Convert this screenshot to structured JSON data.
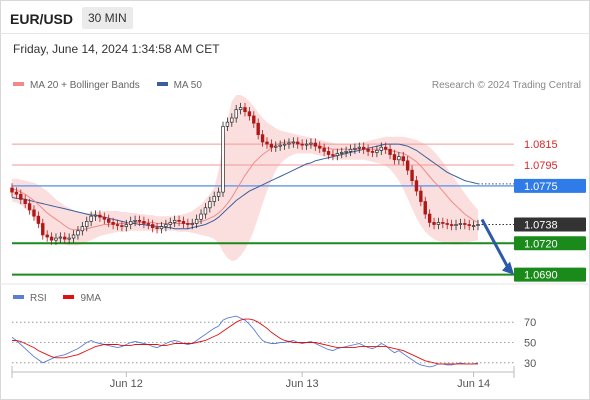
{
  "header": {
    "symbol": "EUR/USD",
    "timeframe": "30 MIN",
    "datetime": "Friday, June 14, 2024 1:34:58 AM CET"
  },
  "legend": {
    "ma20_label": "MA 20 + Bollinger Bands",
    "ma50_label": "MA 50",
    "ma20_color": "#f08a8a",
    "ma50_color": "#3b5f9e",
    "credit": "Research © 2024 Trading Central"
  },
  "rsi_legend": {
    "rsi_label": "RSI",
    "ma_label": "9MA",
    "rsi_color": "#5b7fd6",
    "ma_color": "#e01010"
  },
  "chart_data": {
    "type": "candlestick",
    "price_axis": {
      "range": [
        1.0682,
        1.0862
      ]
    },
    "levels": [
      {
        "value": "1.0815",
        "kind": "resistance",
        "color": "#e03030"
      },
      {
        "value": "1.0795",
        "kind": "resistance",
        "color": "#e03030"
      },
      {
        "value": "1.0775",
        "kind": "pivot",
        "color": "#2f7be8"
      },
      {
        "value": "1.0738",
        "kind": "last",
        "color": "#333333"
      },
      {
        "value": "1.0720",
        "kind": "support",
        "color": "#1a8a1a"
      },
      {
        "value": "1.0690",
        "kind": "support",
        "color": "#1a8a1a"
      }
    ],
    "x_ticks": [
      "Jun 12",
      "Jun 13",
      "Jun 14"
    ],
    "close": [
      1.0769,
      1.0767,
      1.0762,
      1.0758,
      1.0752,
      1.0746,
      1.0739,
      1.0728,
      1.0726,
      1.0723,
      1.0725,
      1.0726,
      1.0724,
      1.0725,
      1.0728,
      1.0732,
      1.0736,
      1.0741,
      1.0746,
      1.0747,
      1.0745,
      1.0743,
      1.074,
      1.0738,
      1.0737,
      1.0736,
      1.0738,
      1.0741,
      1.0742,
      1.0741,
      1.0739,
      1.0738,
      1.0735,
      1.0734,
      1.0736,
      1.0738,
      1.074,
      1.0742,
      1.0741,
      1.0739,
      1.0738,
      1.0739,
      1.0743,
      1.0748,
      1.0754,
      1.076,
      1.0765,
      1.0769,
      1.0832,
      1.0836,
      1.084,
      1.0848,
      1.085,
      1.0846,
      1.0842,
      1.0835,
      1.0824,
      1.0817,
      1.0815,
      1.0812,
      1.0813,
      1.0814,
      1.0815,
      1.0816,
      1.0817,
      1.0815,
      1.0814,
      1.0815,
      1.0816,
      1.0813,
      1.0811,
      1.0808,
      1.0805,
      1.0804,
      1.0806,
      1.0807,
      1.0808,
      1.081,
      1.0811,
      1.0812,
      1.081,
      1.0808,
      1.0807,
      1.0809,
      1.0812,
      1.081,
      1.0805,
      1.08,
      1.0803,
      1.0799,
      1.079,
      1.078,
      1.077,
      1.076,
      1.0748,
      1.074,
      1.0738,
      1.074,
      1.0739,
      1.0738,
      1.0737,
      1.0738,
      1.0739,
      1.0738,
      1.0737,
      1.0737,
      1.0738
    ],
    "ma20": [
      1.0772,
      1.0771,
      1.0769,
      1.0767,
      1.0764,
      1.0761,
      1.0757,
      1.0753,
      1.0749,
      1.0746,
      1.0743,
      1.074,
      1.0737,
      1.0734,
      1.0733,
      1.0733,
      1.0733,
      1.0734,
      1.0735,
      1.0736,
      1.0737,
      1.0738,
      1.0738,
      1.0739,
      1.0739,
      1.0739,
      1.0739,
      1.074,
      1.074,
      1.074,
      1.074,
      1.074,
      1.074,
      1.0739,
      1.0739,
      1.0739,
      1.0739,
      1.0739,
      1.0739,
      1.0739,
      1.0739,
      1.0739,
      1.074,
      1.0741,
      1.0742,
      1.0744,
      1.0746,
      1.0749,
      1.0753,
      1.0758,
      1.0764,
      1.0771,
      1.0778,
      1.0785,
      1.0791,
      1.0797,
      1.0801,
      1.0805,
      1.0808,
      1.0811,
      1.0814,
      1.0816,
      1.0817,
      1.0817,
      1.0817,
      1.0816,
      1.0815,
      1.0815,
      1.0814,
      1.0814,
      1.0813,
      1.0812,
      1.0811,
      1.081,
      1.081,
      1.081,
      1.081,
      1.081,
      1.081,
      1.081,
      1.081,
      1.081,
      1.081,
      1.081,
      1.081,
      1.081,
      1.0809,
      1.0808,
      1.0807,
      1.0806,
      1.0804,
      1.0801,
      1.0798,
      1.0794,
      1.0789,
      1.0784,
      1.0779,
      1.0775,
      1.077,
      1.0765,
      1.076,
      1.0756,
      1.0752,
      1.0748,
      1.0745,
      1.0742,
      1.074
    ],
    "bb_upper": [
      1.0782,
      1.0782,
      1.0781,
      1.078,
      1.0779,
      1.0778,
      1.0776,
      1.0773,
      1.077,
      1.0766,
      1.0762,
      1.0759,
      1.0756,
      1.0754,
      1.0752,
      1.075,
      1.0749,
      1.0749,
      1.0749,
      1.075,
      1.075,
      1.0751,
      1.0751,
      1.0751,
      1.0751,
      1.075,
      1.075,
      1.0749,
      1.0749,
      1.0748,
      1.0748,
      1.0747,
      1.0747,
      1.0746,
      1.0746,
      1.0746,
      1.0746,
      1.0746,
      1.0747,
      1.0748,
      1.0749,
      1.0751,
      1.0754,
      1.0757,
      1.0762,
      1.0767,
      1.0773,
      1.079,
      1.0815,
      1.0838,
      1.0856,
      1.0862,
      1.0862,
      1.086,
      1.0856,
      1.0851,
      1.0845,
      1.084,
      1.0836,
      1.0833,
      1.083,
      1.0828,
      1.0827,
      1.0826,
      1.0825,
      1.0824,
      1.0823,
      1.0822,
      1.0821,
      1.082,
      1.0819,
      1.0818,
      1.0817,
      1.0816,
      1.0815,
      1.0815,
      1.0815,
      1.0815,
      1.0816,
      1.0816,
      1.0817,
      1.0818,
      1.0819,
      1.082,
      1.0821,
      1.0822,
      1.0822,
      1.0822,
      1.0822,
      1.0822,
      1.0821,
      1.082,
      1.0819,
      1.0817,
      1.0815,
      1.0812,
      1.0808,
      1.0803,
      1.0798,
      1.0792,
      1.0786,
      1.078,
      1.0774,
      1.0768,
      1.0762,
      1.0757,
      1.0752
    ],
    "bb_lower": [
      1.076,
      1.0759,
      1.0757,
      1.0754,
      1.0749,
      1.0744,
      1.0738,
      1.0732,
      1.0727,
      1.0724,
      1.0722,
      1.072,
      1.0719,
      1.0718,
      1.0718,
      1.0718,
      1.0719,
      1.0721,
      1.0723,
      1.0725,
      1.0727,
      1.0728,
      1.0729,
      1.073,
      1.0731,
      1.0731,
      1.0731,
      1.0732,
      1.0732,
      1.0732,
      1.0732,
      1.0732,
      1.0732,
      1.0732,
      1.0732,
      1.0732,
      1.0732,
      1.0732,
      1.0731,
      1.0731,
      1.0731,
      1.073,
      1.0729,
      1.0728,
      1.0727,
      1.0726,
      1.0724,
      1.072,
      1.0712,
      1.0706,
      1.0703,
      1.0704,
      1.0708,
      1.0714,
      1.0722,
      1.0732,
      1.0745,
      1.0758,
      1.077,
      1.078,
      1.079,
      1.0796,
      1.08,
      1.0803,
      1.0805,
      1.0806,
      1.0806,
      1.0806,
      1.0806,
      1.0805,
      1.0804,
      1.0803,
      1.0802,
      1.0801,
      1.08,
      1.08,
      1.08,
      1.08,
      1.08,
      1.08,
      1.08,
      1.0799,
      1.0798,
      1.0797,
      1.0796,
      1.0794,
      1.0791,
      1.0786,
      1.078,
      1.0772,
      1.0763,
      1.0753,
      1.0744,
      1.0737,
      1.0731,
      1.0727,
      1.0724,
      1.0722,
      1.0721,
      1.072,
      1.0719,
      1.0719,
      1.0719,
      1.072,
      1.0721,
      1.0722,
      1.0723
    ],
    "ma50": [
      1.0764,
      1.0763,
      1.0763,
      1.0762,
      1.0761,
      1.076,
      1.0759,
      1.0758,
      1.0757,
      1.0756,
      1.0755,
      1.0754,
      1.0753,
      1.0752,
      1.0751,
      1.075,
      1.0749,
      1.0748,
      1.0747,
      1.0747,
      1.0746,
      1.0745,
      1.0744,
      1.0743,
      1.0742,
      1.0741,
      1.074,
      1.0739,
      1.0739,
      1.0738,
      1.0738,
      1.0737,
      1.0737,
      1.0736,
      1.0736,
      1.0735,
      1.0735,
      1.0734,
      1.0734,
      1.0734,
      1.0734,
      1.0735,
      1.0736,
      1.0737,
      1.0738,
      1.074,
      1.0742,
      1.0745,
      1.0749,
      1.0753,
      1.0757,
      1.0761,
      1.0764,
      1.0767,
      1.077,
      1.0772,
      1.0774,
      1.0776,
      1.0778,
      1.078,
      1.0782,
      1.0784,
      1.0786,
      1.0788,
      1.079,
      1.0792,
      1.0794,
      1.0796,
      1.0797,
      1.0799,
      1.08,
      1.0801,
      1.0802,
      1.0803,
      1.0804,
      1.0805,
      1.0806,
      1.0807,
      1.0808,
      1.0809,
      1.081,
      1.0811,
      1.0812,
      1.0813,
      1.0814,
      1.0815,
      1.0815,
      1.0815,
      1.0815,
      1.0814,
      1.0813,
      1.0811,
      1.0809,
      1.0806,
      1.0803,
      1.08,
      1.0797,
      1.0794,
      1.0791,
      1.0788,
      1.0786,
      1.0784,
      1.0782,
      1.078,
      1.0779,
      1.0778,
      1.0777
    ],
    "rsi_axis": {
      "range": [
        20,
        80
      ],
      "ticks": [
        "70",
        "50",
        "30"
      ]
    },
    "rsi": [
      55,
      52,
      48,
      44,
      40,
      36,
      33,
      30,
      32,
      34,
      36,
      37,
      38,
      40,
      42,
      44,
      47,
      50,
      52,
      50,
      49,
      48,
      47,
      46,
      45,
      46,
      48,
      50,
      51,
      50,
      49,
      48,
      46,
      45,
      47,
      49,
      51,
      52,
      51,
      49,
      48,
      49,
      52,
      55,
      58,
      61,
      64,
      66,
      72,
      74,
      75,
      76,
      74,
      72,
      68,
      63,
      57,
      52,
      50,
      49,
      49,
      50,
      50,
      51,
      52,
      50,
      49,
      50,
      51,
      49,
      47,
      45,
      43,
      42,
      44,
      45,
      46,
      47,
      48,
      49,
      47,
      45,
      44,
      46,
      49,
      47,
      43,
      40,
      42,
      39,
      36,
      33,
      30,
      28,
      27,
      26,
      27,
      29,
      29,
      28,
      28,
      29,
      30,
      29,
      29,
      29,
      30
    ],
    "rsi_ma": [
      52,
      52,
      51,
      49,
      47,
      45,
      42,
      40,
      38,
      36,
      35,
      35,
      35,
      36,
      37,
      38,
      40,
      42,
      44,
      46,
      47,
      48,
      48,
      48,
      48,
      47,
      47,
      47,
      48,
      48,
      48,
      48,
      48,
      48,
      47,
      47,
      48,
      49,
      49,
      49,
      49,
      49,
      50,
      51,
      52,
      54,
      56,
      58,
      61,
      64,
      67,
      70,
      72,
      73,
      73,
      72,
      70,
      67,
      64,
      60,
      57,
      54,
      52,
      51,
      50,
      50,
      50,
      50,
      50,
      50,
      49,
      48,
      47,
      46,
      45,
      45,
      45,
      45,
      45,
      46,
      46,
      46,
      46,
      46,
      46,
      46,
      45,
      44,
      43,
      42,
      40,
      38,
      36,
      34,
      32,
      31,
      30,
      29,
      29,
      29,
      29,
      29,
      29,
      29,
      29,
      29,
      29
    ]
  }
}
